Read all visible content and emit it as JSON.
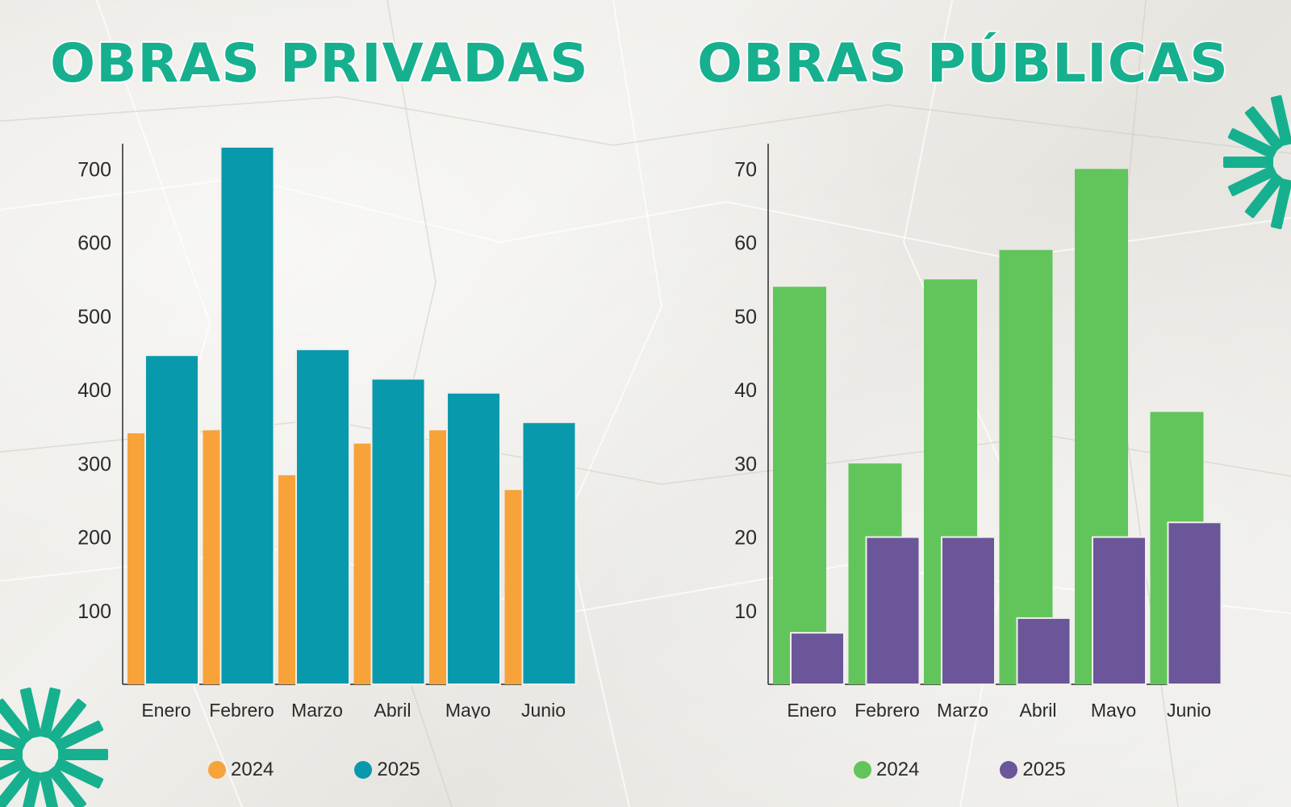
{
  "chart_data": [
    {
      "type": "bar",
      "title": "OBRAS PRIVADAS",
      "categories": [
        "Enero",
        "Febrero",
        "Marzo",
        "Abril",
        "Mayo",
        "Junio"
      ],
      "series": [
        {
          "name": "2024",
          "color": "#f7a33a",
          "values": [
            341,
            345,
            284,
            327,
            345,
            264
          ]
        },
        {
          "name": "2025",
          "color": "#0899ad",
          "values": [
            447,
            730,
            455,
            415,
            396,
            356
          ]
        }
      ],
      "yticks": [
        100,
        200,
        300,
        400,
        500,
        600,
        700
      ],
      "ylim": [
        0,
        730
      ],
      "legend_position": "bottom"
    },
    {
      "type": "bar",
      "title": "OBRAS PÚBLICAS",
      "categories": [
        "Enero",
        "Febrero",
        "Marzo",
        "Abril",
        "Mayo",
        "Junio"
      ],
      "series": [
        {
          "name": "2024",
          "color": "#62c55b",
          "values": [
            54,
            30,
            55,
            59,
            70,
            37
          ]
        },
        {
          "name": "2025",
          "color": "#6a5699",
          "values": [
            7,
            20,
            20,
            9,
            20,
            22
          ]
        }
      ],
      "yticks": [
        10,
        20,
        30,
        40,
        50,
        60,
        70
      ],
      "ylim": [
        0,
        73
      ],
      "legend_position": "bottom"
    }
  ],
  "decor": {
    "accent": "#16b08f",
    "icon": "starburst-icon"
  }
}
